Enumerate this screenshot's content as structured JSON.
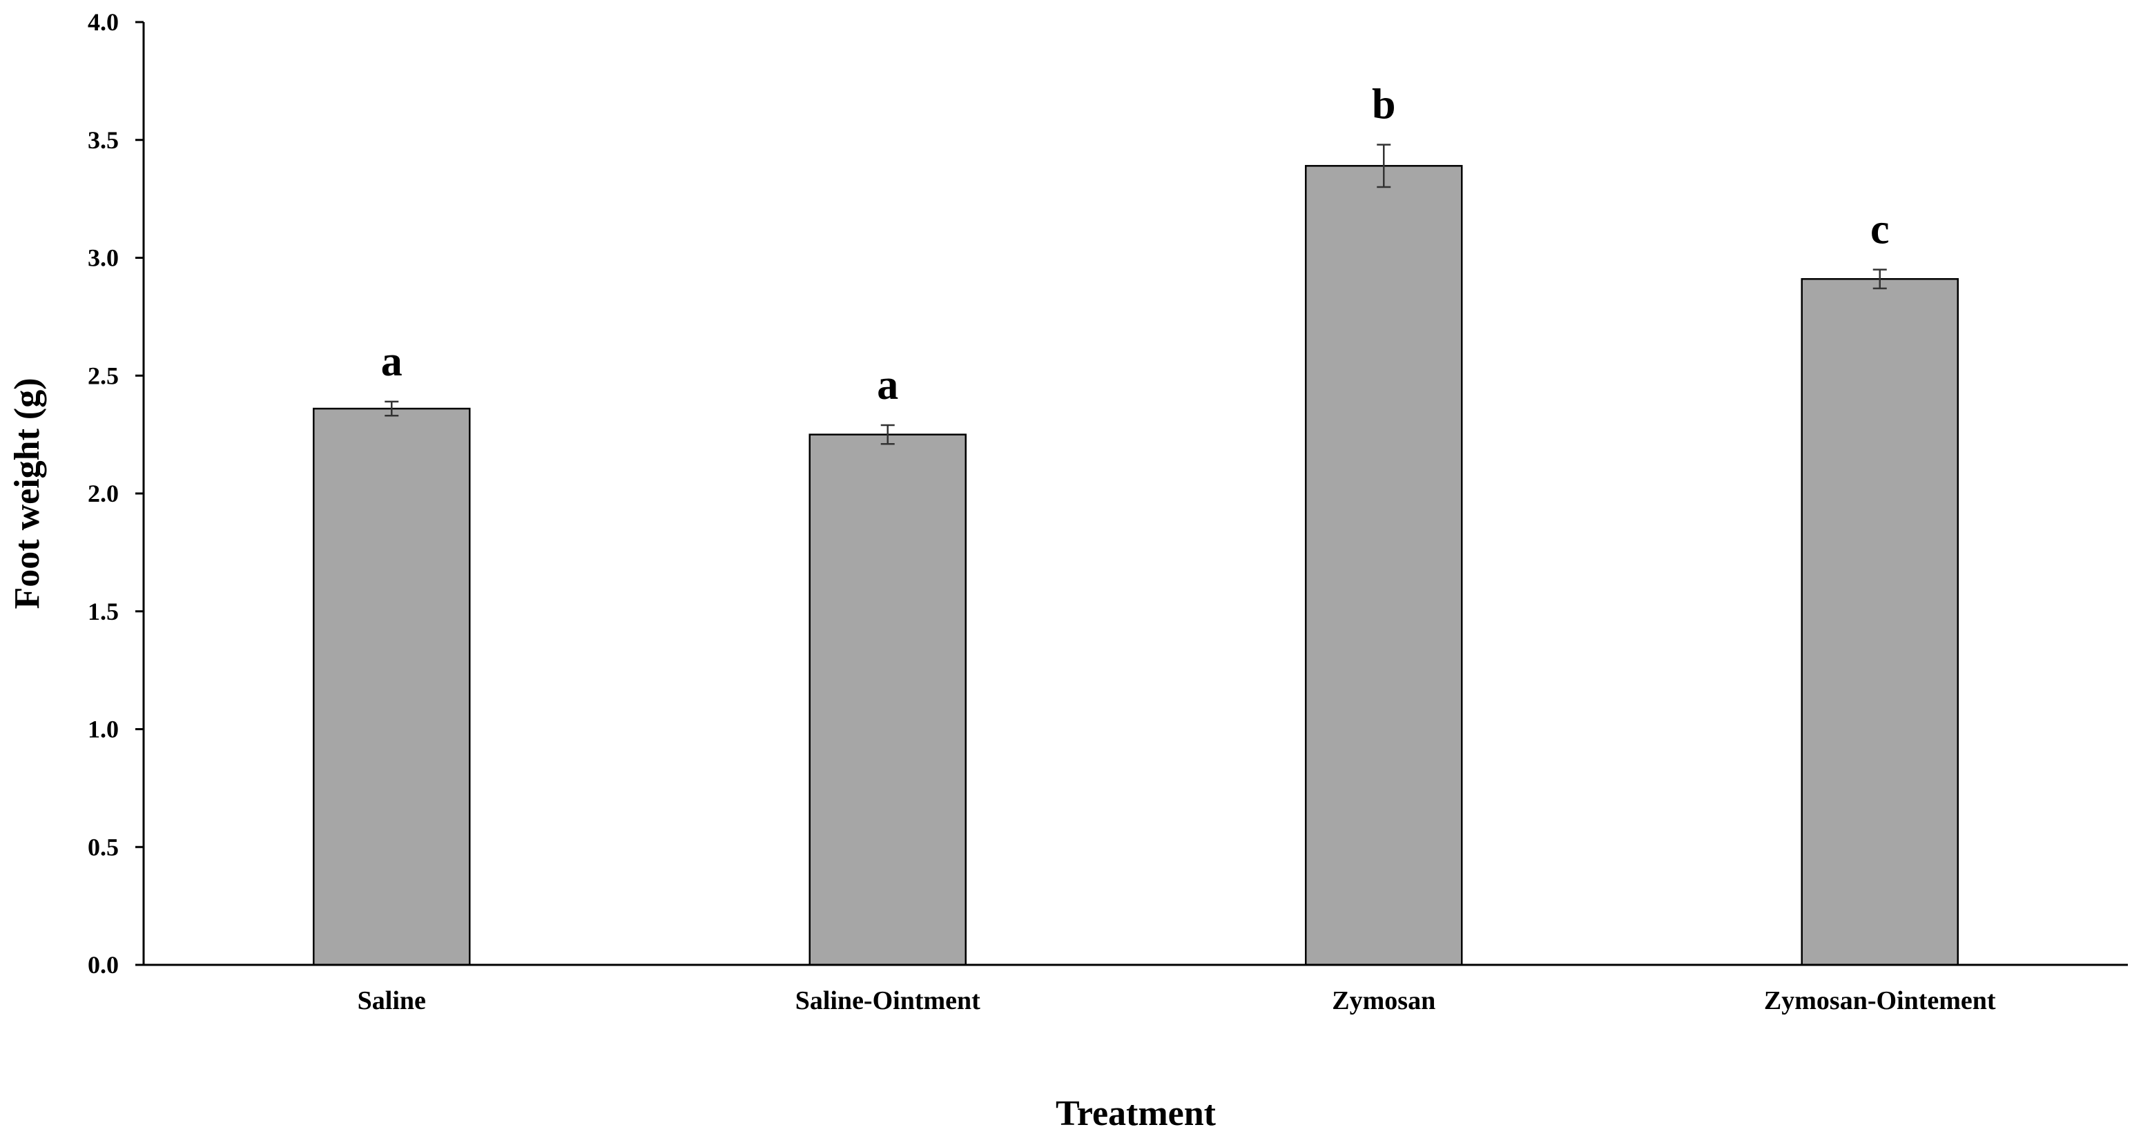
{
  "chart_data": {
    "type": "bar",
    "title": "",
    "xlabel": "Treatment",
    "ylabel": "Foot weight (g)",
    "ylim": [
      0,
      4.0
    ],
    "yticks": [
      "0.0",
      "0.5",
      "1.0",
      "1.5",
      "2.0",
      "2.5",
      "3.0",
      "3.5",
      "4.0"
    ],
    "grid": false,
    "legend": "none",
    "categories": [
      "Saline",
      "Saline-Ointment",
      "Zymosan",
      "Zymosan-Ointement"
    ],
    "values": [
      2.36,
      2.25,
      3.39,
      2.91
    ],
    "errors": [
      0.03,
      0.04,
      0.09,
      0.04
    ],
    "significance": [
      "a",
      "a",
      "b",
      "c"
    ],
    "bar_color": "#a6a6a6",
    "bar_edge_color": "#000000",
    "axis_color": "#000000"
  }
}
